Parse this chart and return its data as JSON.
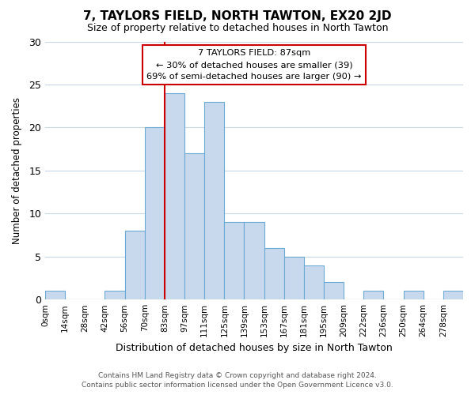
{
  "title": "7, TAYLORS FIELD, NORTH TAWTON, EX20 2JD",
  "subtitle": "Size of property relative to detached houses in North Tawton",
  "xlabel": "Distribution of detached houses by size in North Tawton",
  "ylabel": "Number of detached properties",
  "bin_labels": [
    "0sqm",
    "14sqm",
    "28sqm",
    "42sqm",
    "56sqm",
    "70sqm",
    "83sqm",
    "97sqm",
    "111sqm",
    "125sqm",
    "139sqm",
    "153sqm",
    "167sqm",
    "181sqm",
    "195sqm",
    "209sqm",
    "222sqm",
    "236sqm",
    "250sqm",
    "264sqm",
    "278sqm"
  ],
  "bin_edges": [
    0,
    14,
    28,
    42,
    56,
    70,
    83,
    97,
    111,
    125,
    139,
    153,
    167,
    181,
    195,
    209,
    222,
    236,
    250,
    264,
    278,
    292
  ],
  "bar_heights": [
    1,
    0,
    0,
    1,
    8,
    20,
    24,
    17,
    23,
    9,
    9,
    6,
    5,
    4,
    2,
    0,
    1,
    0,
    1,
    0,
    1
  ],
  "bar_color": "#c8d9ee",
  "bar_edge_color": "#6aaad4",
  "property_size": 87,
  "vline_color": "#cc0000",
  "annotation_title": "7 TAYLORS FIELD: 87sqm",
  "annotation_line1": "← 30% of detached houses are smaller (39)",
  "annotation_line2": "69% of semi-detached houses are larger (90) →",
  "annotation_box_color": "#ffffff",
  "annotation_box_edge": "#cc0000",
  "ylim": [
    0,
    30
  ],
  "yticks": [
    0,
    5,
    10,
    15,
    20,
    25,
    30
  ],
  "footer_line1": "Contains HM Land Registry data © Crown copyright and database right 2024.",
  "footer_line2": "Contains public sector information licensed under the Open Government Licence v3.0.",
  "background_color": "#ffffff",
  "grid_color": "#c8d8ea"
}
